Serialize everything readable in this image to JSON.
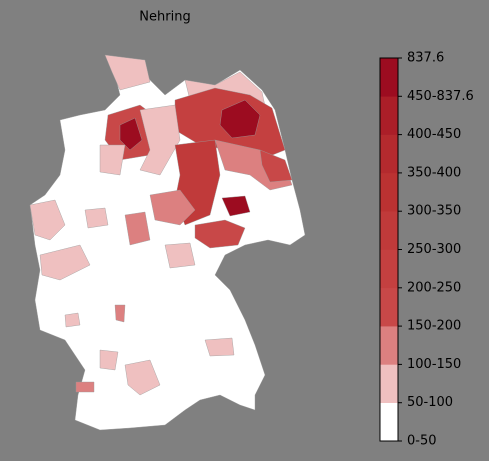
{
  "title": "Nehring",
  "legend": {
    "labels": [
      "0-50",
      "50-100",
      "100-150",
      "150-200",
      "200-250",
      "250-300",
      "300-350",
      "350-400",
      "400-450",
      "450-837.6",
      "837.6"
    ],
    "colors": [
      "#ffffff",
      "#efc0c0",
      "#dc8080",
      "#c84848",
      "#c44040",
      "#c03a3a",
      "#bb3232",
      "#b42a2e",
      "#ab1e28",
      "#9c0c20"
    ]
  }
}
